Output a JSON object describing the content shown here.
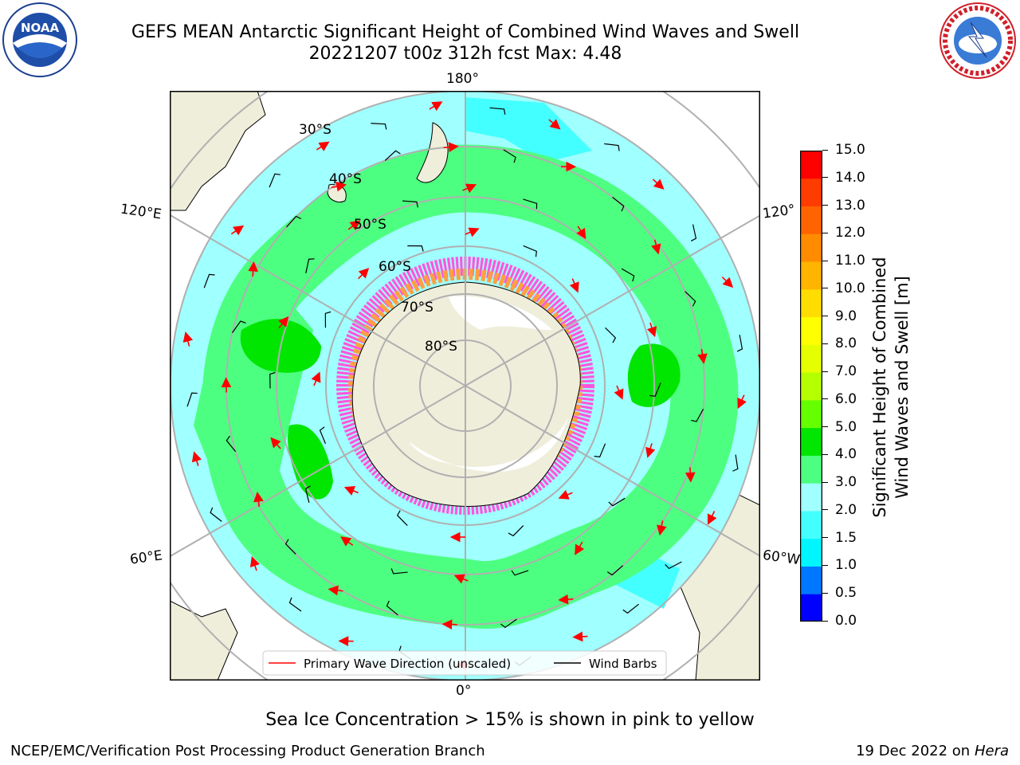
{
  "title": {
    "line1": "GEFS MEAN Antarctic Significant Height of Combined Wind Waves and Swell",
    "line2": "20221207 t00z 312h fcst   Max: 4.48"
  },
  "logos": {
    "left": "NOAA",
    "right": "NATIONAL WEATHER SERVICE"
  },
  "map": {
    "projection": "south polar stereographic",
    "lon_labels": {
      "top": "180°",
      "bottom": "0°",
      "left_upper": "120°E",
      "left_lower": "60°E",
      "right_upper": "120°",
      "right_lower": "60°W"
    },
    "lat_labels": [
      "30°S",
      "40°S",
      "50°S",
      "60°S",
      "70°S",
      "80°S"
    ],
    "legend": {
      "wave_direction": "Primary Wave Direction (unscaled)",
      "wind_barbs": "Wind Barbs"
    }
  },
  "colorbar": {
    "title_line1": "Significant Height of Combined",
    "title_line2": "Wind Waves and Swell [m]",
    "ticks": [
      "0.0",
      "0.5",
      "1.0",
      "1.5",
      "2.0",
      "3.0",
      "4.0",
      "5.0",
      "6.0",
      "7.0",
      "8.0",
      "9.0",
      "10.0",
      "11.0",
      "12.0",
      "13.0",
      "14.0",
      "15.0"
    ],
    "colors": [
      "#0000ff",
      "#0077ff",
      "#00f5ff",
      "#44ffff",
      "#a0ffff",
      "#4dff80",
      "#00e600",
      "#66ff00",
      "#b4ff00",
      "#e6ff00",
      "#ffff00",
      "#ffdd00",
      "#ffb400",
      "#ff8c00",
      "#ff6400",
      "#ff3c00",
      "#ff0000"
    ]
  },
  "colors": {
    "land": "#efeedb",
    "ocean_low": "#a0ffff",
    "ocean_mid": "#4dff80",
    "ocean_high": "#00e600",
    "ocean_cyan": "#44ffff",
    "arrow": "#ff0000",
    "ice_pink": "#ff55dd",
    "ice_orange": "#ffa040"
  },
  "note": "Sea Ice Concentration > 15% is shown in pink to yellow",
  "footer": {
    "left": "NCEP/EMC/Verification Post Processing Product Generation Branch",
    "date": "19 Dec 2022 on",
    "host": "Hera"
  }
}
